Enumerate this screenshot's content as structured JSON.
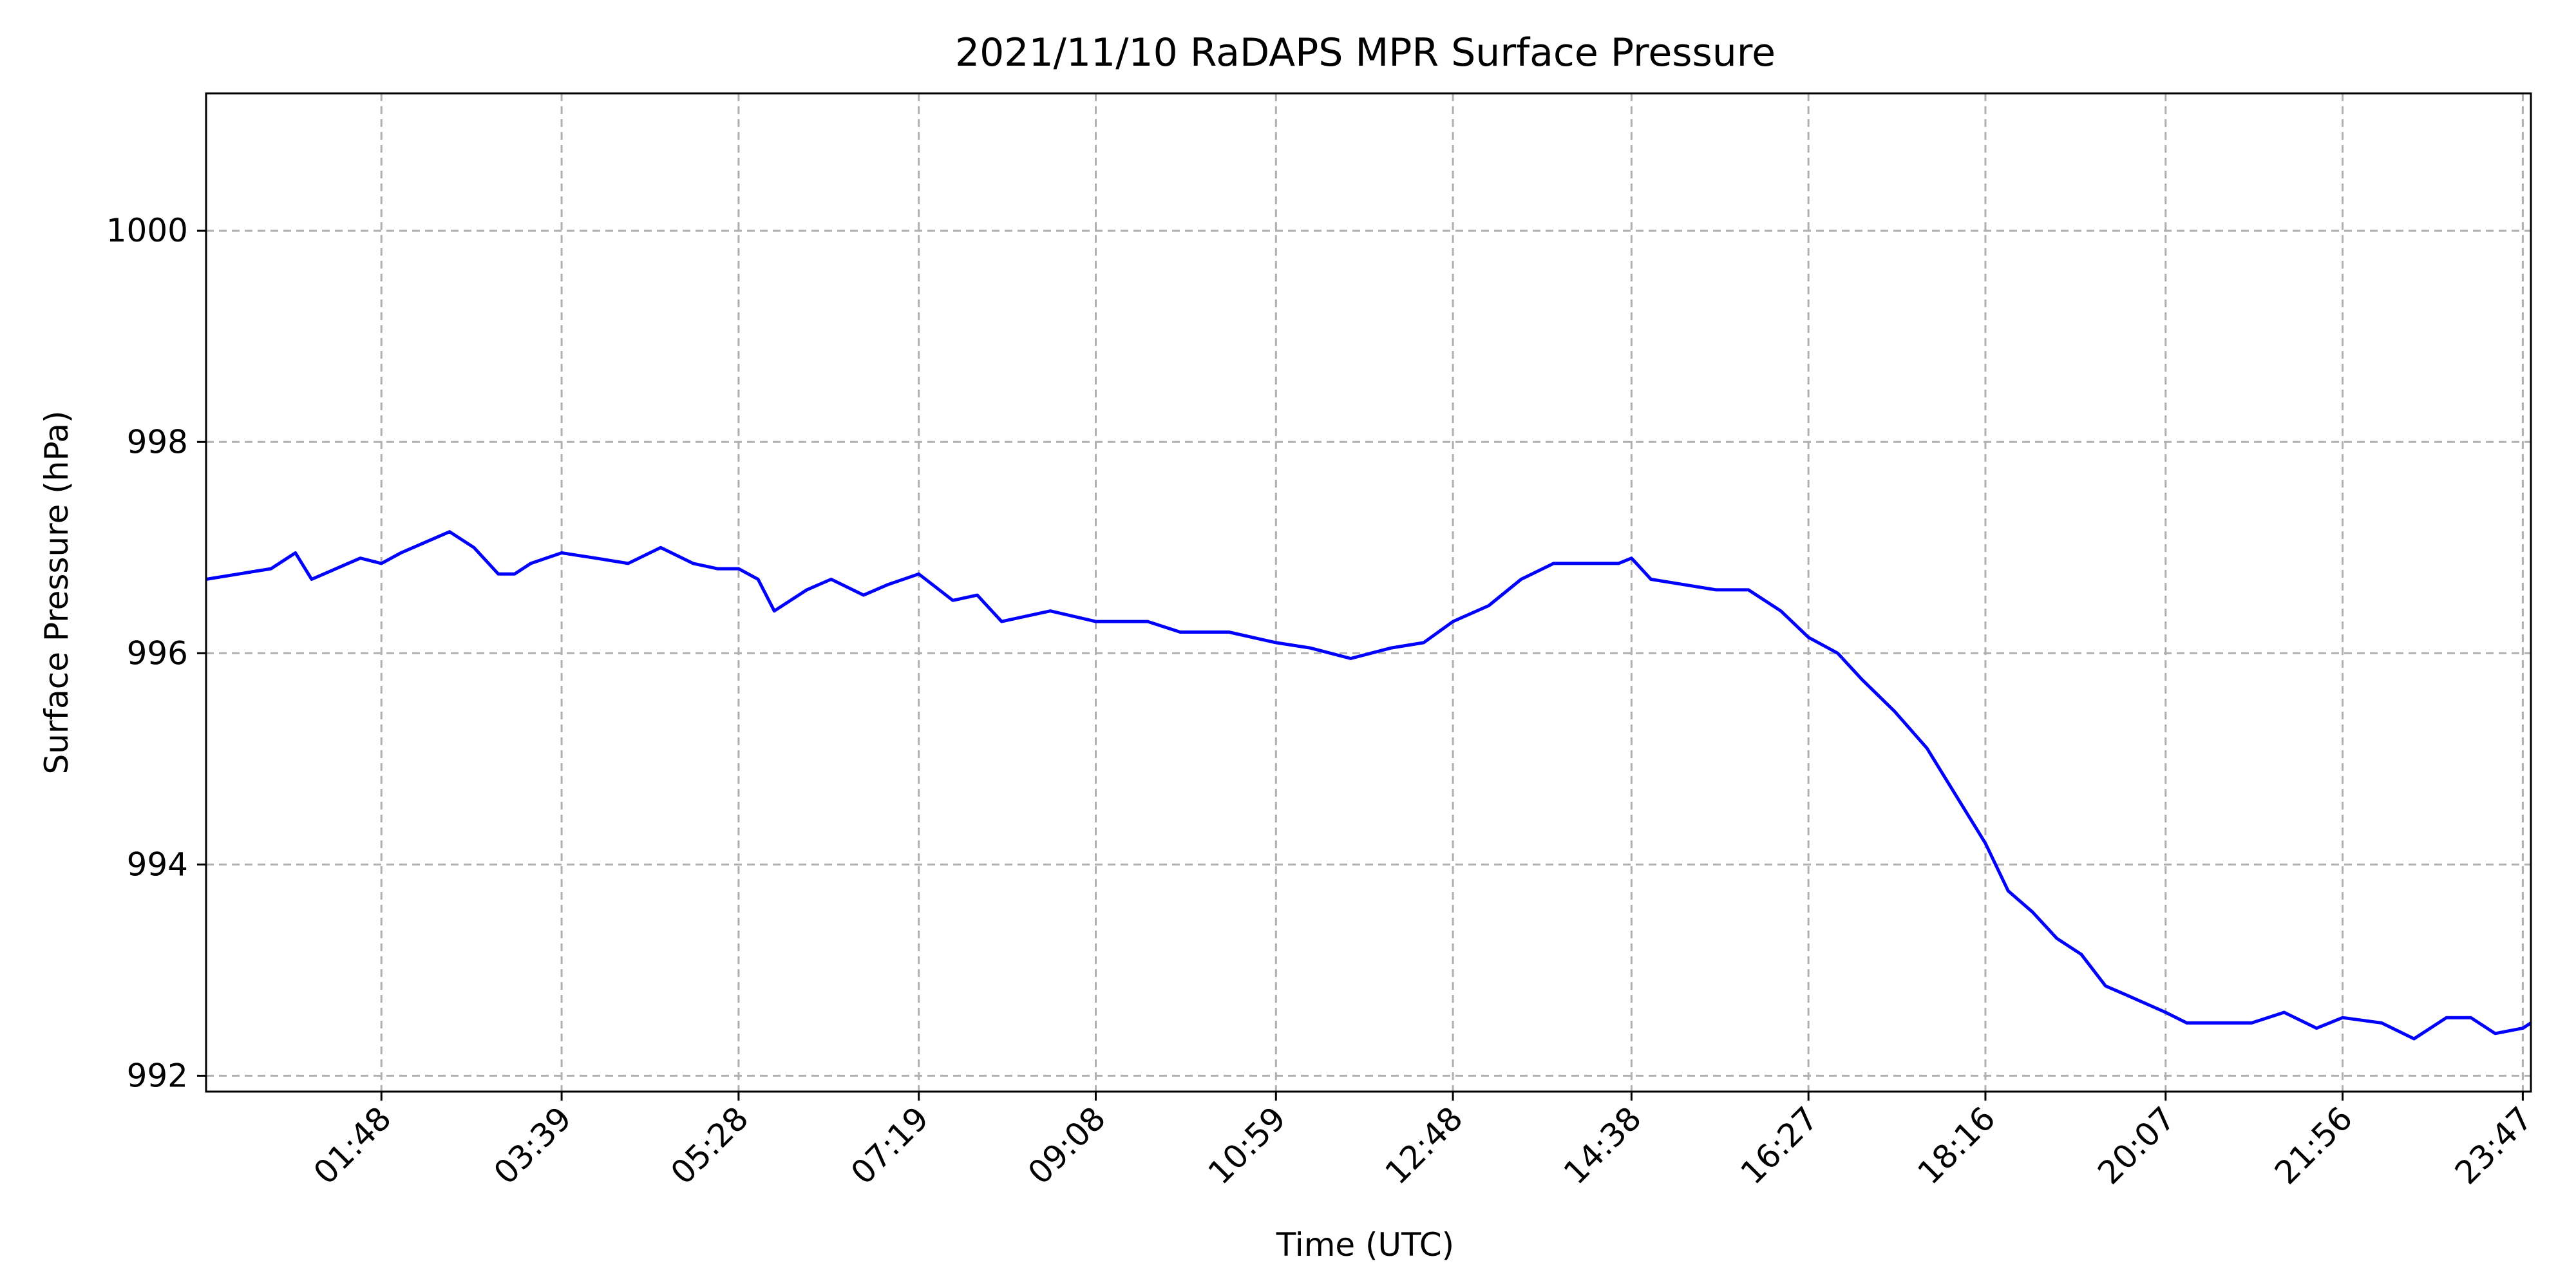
{
  "chart_data": {
    "type": "line",
    "title": "2021/11/10 RaDAPS MPR Surface Pressure",
    "xlabel": "Time (UTC)",
    "ylabel": "Surface Pressure (hPa)",
    "xlim": [
      "00:00",
      "23:52"
    ],
    "ylim": [
      991.85,
      1001.3
    ],
    "x_ticks": [
      "01:48",
      "03:39",
      "05:28",
      "07:19",
      "09:08",
      "10:59",
      "12:48",
      "14:38",
      "16:27",
      "18:16",
      "20:07",
      "21:56",
      "23:47"
    ],
    "y_ticks": [
      992,
      994,
      996,
      998,
      1000
    ],
    "grid": true,
    "legend": "none",
    "series": [
      {
        "color": "#0000ff",
        "x": [
          "00:00",
          "00:20",
          "00:40",
          "00:55",
          "01:05",
          "01:20",
          "01:35",
          "01:48",
          "02:00",
          "02:15",
          "02:30",
          "02:45",
          "03:00",
          "03:10",
          "03:20",
          "03:39",
          "04:00",
          "04:20",
          "04:40",
          "05:00",
          "05:15",
          "05:28",
          "05:40",
          "05:50",
          "06:10",
          "06:25",
          "06:45",
          "07:00",
          "07:19",
          "07:40",
          "07:55",
          "08:10",
          "08:40",
          "09:08",
          "09:40",
          "10:00",
          "10:30",
          "10:59",
          "11:20",
          "11:45",
          "12:10",
          "12:30",
          "12:48",
          "13:10",
          "13:30",
          "13:50",
          "14:10",
          "14:30",
          "14:38",
          "14:50",
          "15:10",
          "15:30",
          "15:50",
          "16:10",
          "16:27",
          "16:45",
          "17:00",
          "17:20",
          "17:40",
          "18:00",
          "18:16",
          "18:30",
          "18:45",
          "19:00",
          "19:15",
          "19:30",
          "19:45",
          "20:07",
          "20:20",
          "20:40",
          "21:00",
          "21:20",
          "21:40",
          "21:56",
          "22:20",
          "22:40",
          "23:00",
          "23:15",
          "23:30",
          "23:47",
          "23:52"
        ],
        "y": [
          996.7,
          996.75,
          996.8,
          996.95,
          996.7,
          996.8,
          996.9,
          996.85,
          996.95,
          997.05,
          997.15,
          997.0,
          996.75,
          996.75,
          996.85,
          996.95,
          996.9,
          996.85,
          997.0,
          996.85,
          996.8,
          996.8,
          996.7,
          996.4,
          996.6,
          996.7,
          996.55,
          996.65,
          996.75,
          996.5,
          996.55,
          996.3,
          996.4,
          996.3,
          996.3,
          996.2,
          996.2,
          996.1,
          996.05,
          995.95,
          996.05,
          996.1,
          996.3,
          996.45,
          996.7,
          996.85,
          996.85,
          996.85,
          996.9,
          996.7,
          996.65,
          996.6,
          996.6,
          996.4,
          996.15,
          996.0,
          995.75,
          995.45,
          995.1,
          994.6,
          994.2,
          993.75,
          993.55,
          993.3,
          993.15,
          992.85,
          992.75,
          992.6,
          992.5,
          992.5,
          992.5,
          992.6,
          992.45,
          992.55,
          992.5,
          992.35,
          992.55,
          992.55,
          992.4,
          992.45,
          992.5
        ]
      }
    ]
  }
}
